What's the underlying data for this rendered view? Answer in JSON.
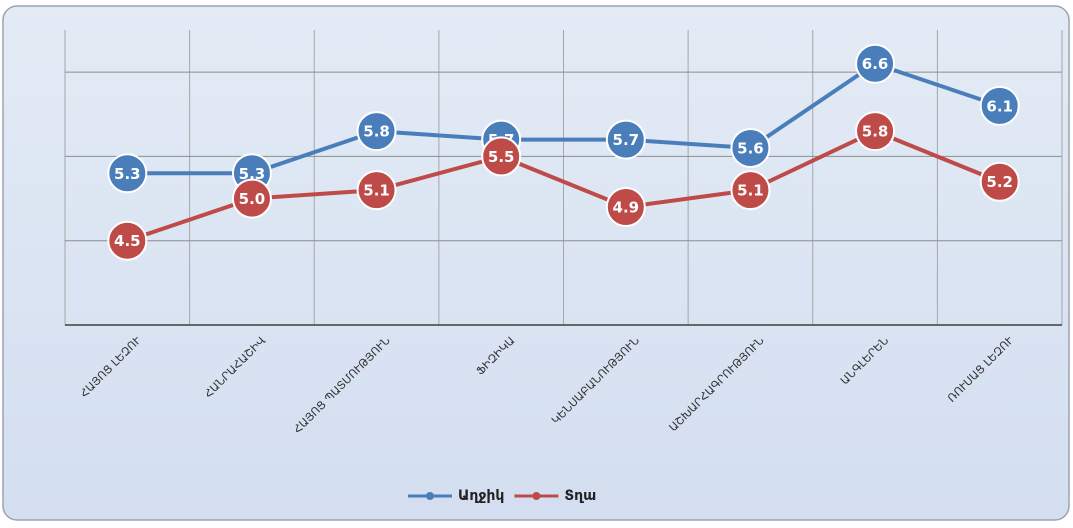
{
  "chart_data": {
    "type": "line",
    "categories": [
      "ՀԱՅՈՑ ԼԵԶՈՒ",
      "ՀԱՆՐԱՀԱՇԻՎ",
      "ՀԱՅՈՑ ՊԱՏՄՈՒԹՅՈՒՆ",
      "ՖԻԶԻԿԱ",
      "ԿԵՆՍԱԲԱՆՈՒԹՅՈՒՆ",
      "ԱՇԽԱՐՀԱԳՐՈՒԹՅՈՒՆ",
      "ԱՆԳԼԵՐԵՆ",
      "ՌՈՒՍԱՑ ԼԵԶՈՒ"
    ],
    "series": [
      {
        "name": "Աղջիկ",
        "color": "#4a7ebb",
        "values": [
          5.3,
          5.3,
          5.8,
          5.7,
          5.7,
          5.6,
          6.6,
          6.1
        ],
        "value_labels": [
          "5.3",
          "5.3",
          "5.8",
          "5.7",
          "5.7",
          "5.6",
          "6.6",
          "6.1"
        ]
      },
      {
        "name": "Տղա",
        "color": "#be4b48",
        "values": [
          4.5,
          5.0,
          5.1,
          5.5,
          4.9,
          5.1,
          5.8,
          5.2
        ],
        "value_labels": [
          "4.5",
          "5.0",
          "5.1",
          "5.5",
          "4.9",
          "5.1",
          "5.8",
          "5.2"
        ]
      }
    ],
    "ylim": [
      3.5,
      7
    ],
    "yticks": [
      3.5,
      4.5,
      5.5,
      6.5
    ],
    "grid": true,
    "legend": "bottom"
  }
}
